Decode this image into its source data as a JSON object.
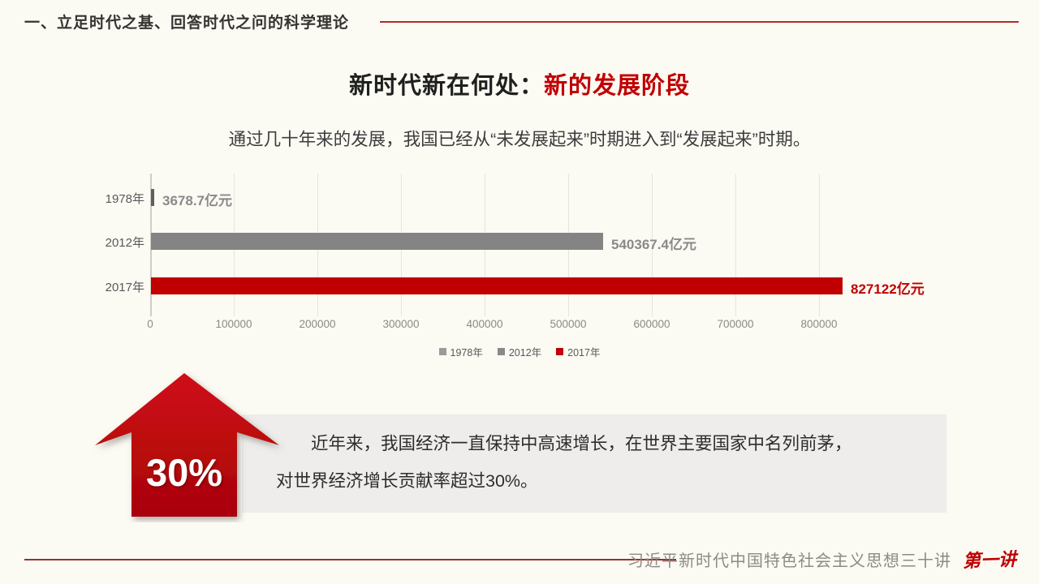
{
  "page": {
    "background": "#fbfaf3",
    "accent_red": "#c00000"
  },
  "header": {
    "title": "一、立足时代之基、回答时代之问的科学理论"
  },
  "title": {
    "black_part": "新时代新在何处：",
    "red_part": "新的发展阶段"
  },
  "subtitle": "通过几十年来的发展，我国已经从“未发展起来”时期进入到“发展起来”时期。",
  "chart_data": {
    "type": "bar",
    "orientation": "horizontal",
    "title": "",
    "xlabel": "",
    "ylabel": "",
    "categories": [
      "1978年",
      "2012年",
      "2017年"
    ],
    "values": [
      3678.7,
      540367.4,
      827122
    ],
    "unit": "亿元",
    "xlim": [
      0,
      800000
    ],
    "xticks": [
      0,
      100000,
      200000,
      300000,
      400000,
      500000,
      600000,
      700000,
      800000
    ],
    "grid": "vertical",
    "legend_position": "bottom",
    "bars": [
      {
        "category": "1978年",
        "value": 3678.7,
        "value_label": "3678.7亿元",
        "bar_color": "#5f5f5f",
        "label_color": "#8a8a8a"
      },
      {
        "category": "2012年",
        "value": 540367.4,
        "value_label": "540367.4亿元",
        "bar_color": "#848484",
        "label_color": "#8a8a8a"
      },
      {
        "category": "2017年",
        "value": 827122,
        "value_label": "827122亿元",
        "bar_color": "#c00000",
        "label_color": "#c00000"
      }
    ],
    "legend": [
      {
        "label": "1978年",
        "color": "#9b9b9b"
      },
      {
        "label": "2012年",
        "color": "#8a8a8a"
      },
      {
        "label": "2017年",
        "color": "#c00000"
      }
    ]
  },
  "highlight": {
    "arrow_label": "30%",
    "arrow_color": "#c00000",
    "lines": [
      "近年来，我国经济一直保持中高速增长，在世界主要国家中名列前茅，",
      "对世界经济增长贡献率超过30%。"
    ]
  },
  "footer": {
    "series_title": "习近平新时代中国特色社会主义思想三十讲",
    "lecture": "第一讲"
  }
}
